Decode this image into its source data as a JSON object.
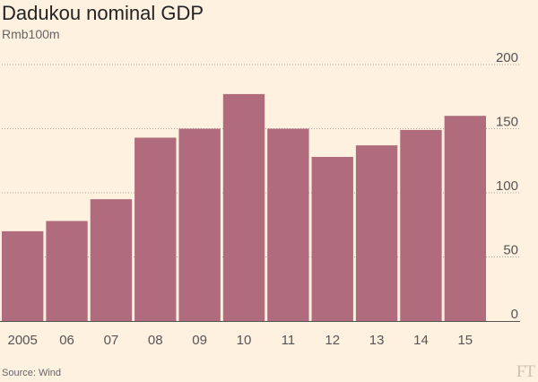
{
  "title": "Dadukou nominal GDP",
  "subtitle": "Rmb100m",
  "source": "Source: Wind",
  "logo": "FT",
  "colors": {
    "background": "#fff1e0",
    "bar": "#b06c7c",
    "grid": "#a8a29a",
    "axis": "#555555"
  },
  "chart_data": {
    "type": "bar",
    "title": "Dadukou nominal GDP",
    "ylabel": "Rmb100m",
    "xlabel": "",
    "categories": [
      "2005",
      "06",
      "07",
      "08",
      "09",
      "10",
      "11",
      "12",
      "13",
      "14",
      "15"
    ],
    "values": [
      70,
      78,
      95,
      143,
      150,
      177,
      150,
      128,
      137,
      149,
      160
    ],
    "ylim": [
      0,
      200
    ],
    "yticks": [
      0,
      50,
      100,
      150,
      200
    ],
    "grid": true,
    "y_axis_position": "right",
    "legend": "none"
  }
}
